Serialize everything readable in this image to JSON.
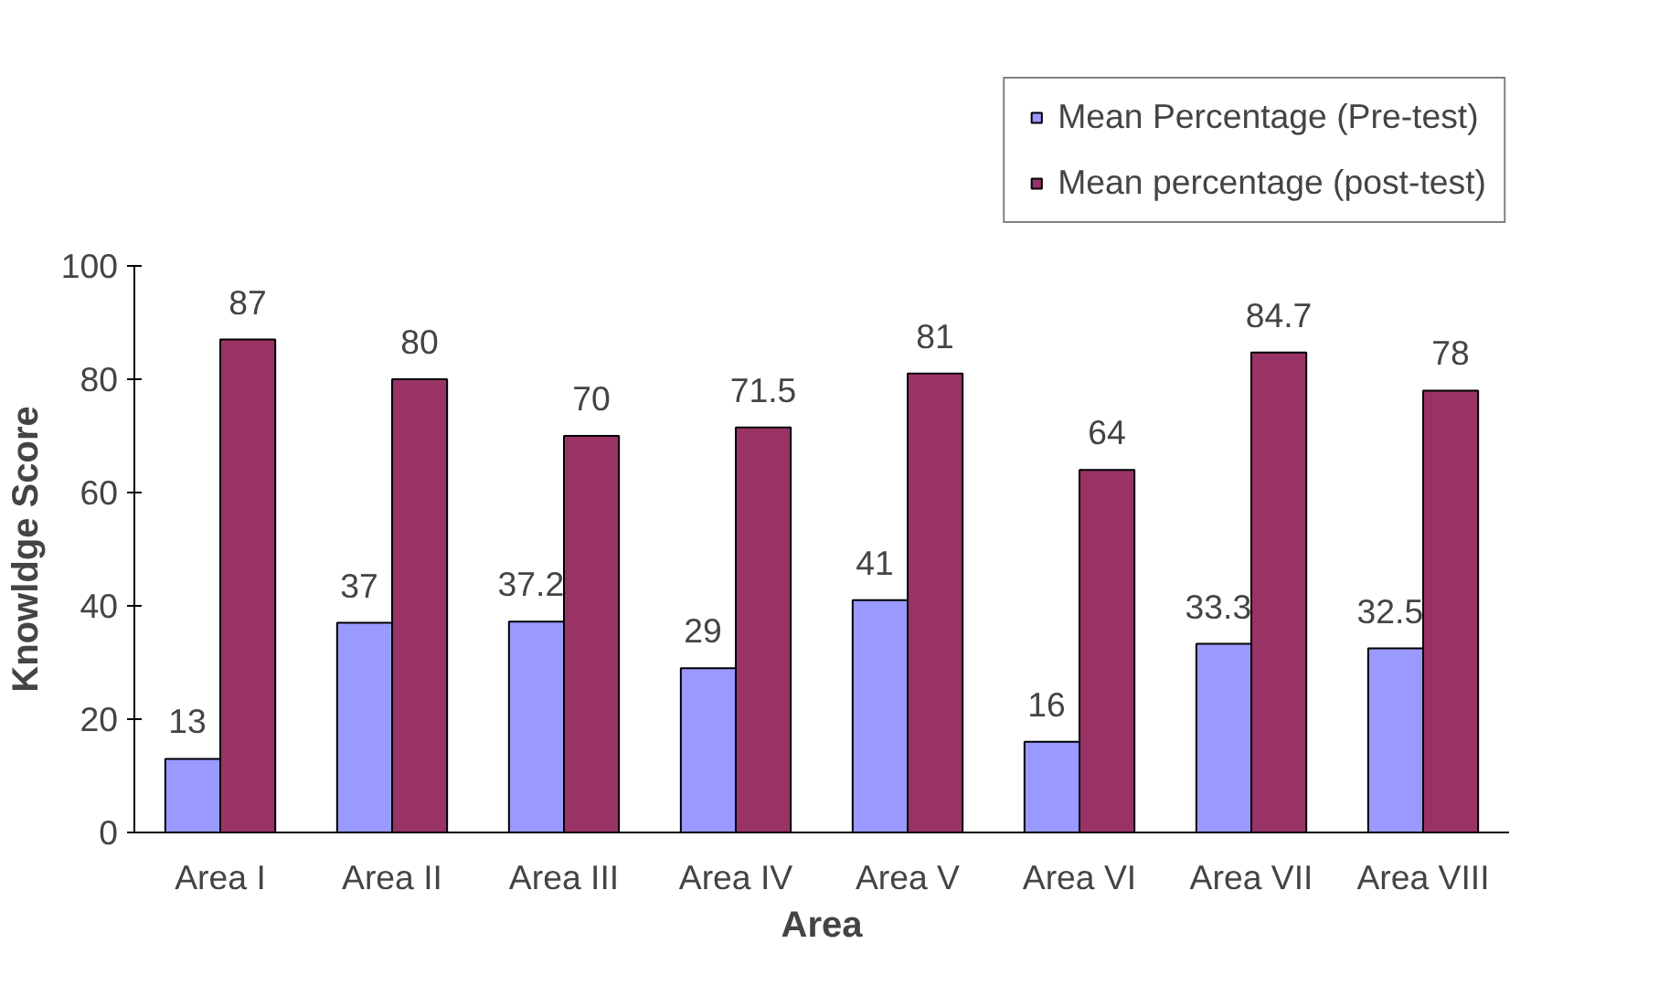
{
  "chart_data": {
    "type": "bar",
    "xlabel": "Area",
    "ylabel": "Knowldge Score",
    "categories": [
      "Area I",
      "Area II",
      "Area III",
      "Area IV",
      "Area V",
      "Area VI",
      "Area VII",
      "Area VIII"
    ],
    "series": [
      {
        "name": "Mean Percentage (Pre-test)",
        "color": "#9999ff",
        "values": [
          13,
          37,
          37.2,
          29,
          41,
          16,
          33.3,
          32.5
        ]
      },
      {
        "name": "Mean percentage (post-test)",
        "color": "#993366",
        "values": [
          87,
          80,
          70,
          71.5,
          81,
          64,
          84.7,
          78
        ]
      }
    ],
    "ylim": [
      0,
      100
    ],
    "yticks": [
      0,
      20,
      40,
      60,
      80,
      100
    ],
    "grid": false,
    "legend": "top right",
    "data_labels": true
  }
}
